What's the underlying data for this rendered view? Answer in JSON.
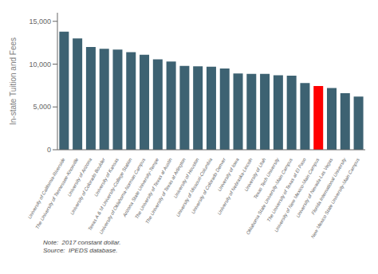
{
  "chart_data": {
    "type": "bar",
    "categories": [
      "University of California-Riverside",
      "The University of Tennessee-Knoxville",
      "University of Arizona",
      "University of Colorado Boulder",
      "University of Kansas",
      "Texas A & M University-College Station",
      "University of Oklahoma-Norman Campus",
      "Arizona State University-Tempe",
      "The University of Texas at Austin",
      "The University of Texas at Arlington",
      "University of Houston",
      "University of Missouri-Columbia",
      "University of Colorado Denver",
      "University of Iowa",
      "University of Nebraska-Lincoln",
      "University of Utah",
      "Texas Tech University",
      "Oklahoma State University-Main Campus",
      "The University of Texas at El Paso",
      "University of New Mexico-Main Campus",
      "University of Nevada-Las Vegas",
      "Florida International University",
      "New Mexico State University-Main Campus"
    ],
    "values": [
      13800,
      13000,
      12000,
      11800,
      11700,
      11400,
      11100,
      10550,
      10300,
      9800,
      9750,
      9700,
      9500,
      8900,
      8850,
      8850,
      8700,
      8650,
      7800,
      7450,
      7200,
      6600,
      6200
    ],
    "colors": [
      "#3d6272",
      "#3d6272",
      "#3d6272",
      "#3d6272",
      "#3d6272",
      "#3d6272",
      "#3d6272",
      "#3d6272",
      "#3d6272",
      "#3d6272",
      "#3d6272",
      "#3d6272",
      "#3d6272",
      "#3d6272",
      "#3d6272",
      "#3d6272",
      "#3d6272",
      "#3d6272",
      "#3d6272",
      "#ff0000",
      "#3d6272",
      "#3d6272",
      "#3d6272"
    ],
    "ylabel": "In-state Tuition and Fees",
    "ylim": [
      0,
      16000
    ],
    "yticks": [
      0,
      {
        "value": 5000,
        "label": "5,000"
      },
      {
        "value": 10000,
        "label": "10,000"
      },
      {
        "value": 15000,
        "label": "15,000"
      }
    ],
    "annotations": [
      "Note:  2017 constant dollar.\nSource:  IPEDS database."
    ],
    "grid": false
  }
}
